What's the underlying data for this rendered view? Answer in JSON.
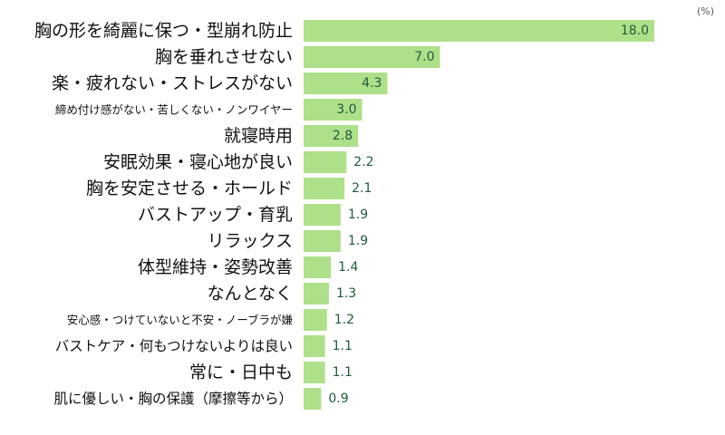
{
  "chart_data": {
    "type": "bar",
    "orientation": "horizontal",
    "unit": "(%)",
    "xlim": [
      0,
      20
    ],
    "grid": false,
    "bar_color": "#aee08a",
    "value_label_color": "#1f5a3a",
    "categories": [
      "胸の形を綺麗に保つ・型崩れ防止",
      "胸を垂れさせない",
      "楽・疲れない・ストレスがない",
      "締め付け感がない・苦しくない・ノンワイヤー",
      "就寝時用",
      "安眠効果・寝心地が良い",
      "胸を安定させる・ホールド",
      "バストアップ・育乳",
      "リラックス",
      "体型維持・姿勢改善",
      "なんとなく",
      "安心感・つけていないと不安・ノーブラが嫌",
      "バストケア・何もつけないよりは良い",
      "常に・日中も",
      "肌に優しい・胸の保護（摩擦等から）"
    ],
    "values": [
      18.0,
      7.0,
      4.3,
      3.0,
      2.8,
      2.2,
      2.1,
      1.9,
      1.9,
      1.4,
      1.3,
      1.2,
      1.1,
      1.1,
      0.9
    ],
    "value_labels": [
      "18.0",
      "7.0",
      "4.3",
      "3.0",
      "2.8",
      "2.2",
      "2.1",
      "1.9",
      "1.9",
      "1.4",
      "1.3",
      "1.2",
      "1.1",
      "1.1",
      "0.9"
    ],
    "label_sizes": [
      "large",
      "large",
      "large",
      "small",
      "large",
      "large",
      "large",
      "large",
      "large",
      "large",
      "large",
      "small",
      "medium",
      "large",
      "medium"
    ]
  }
}
